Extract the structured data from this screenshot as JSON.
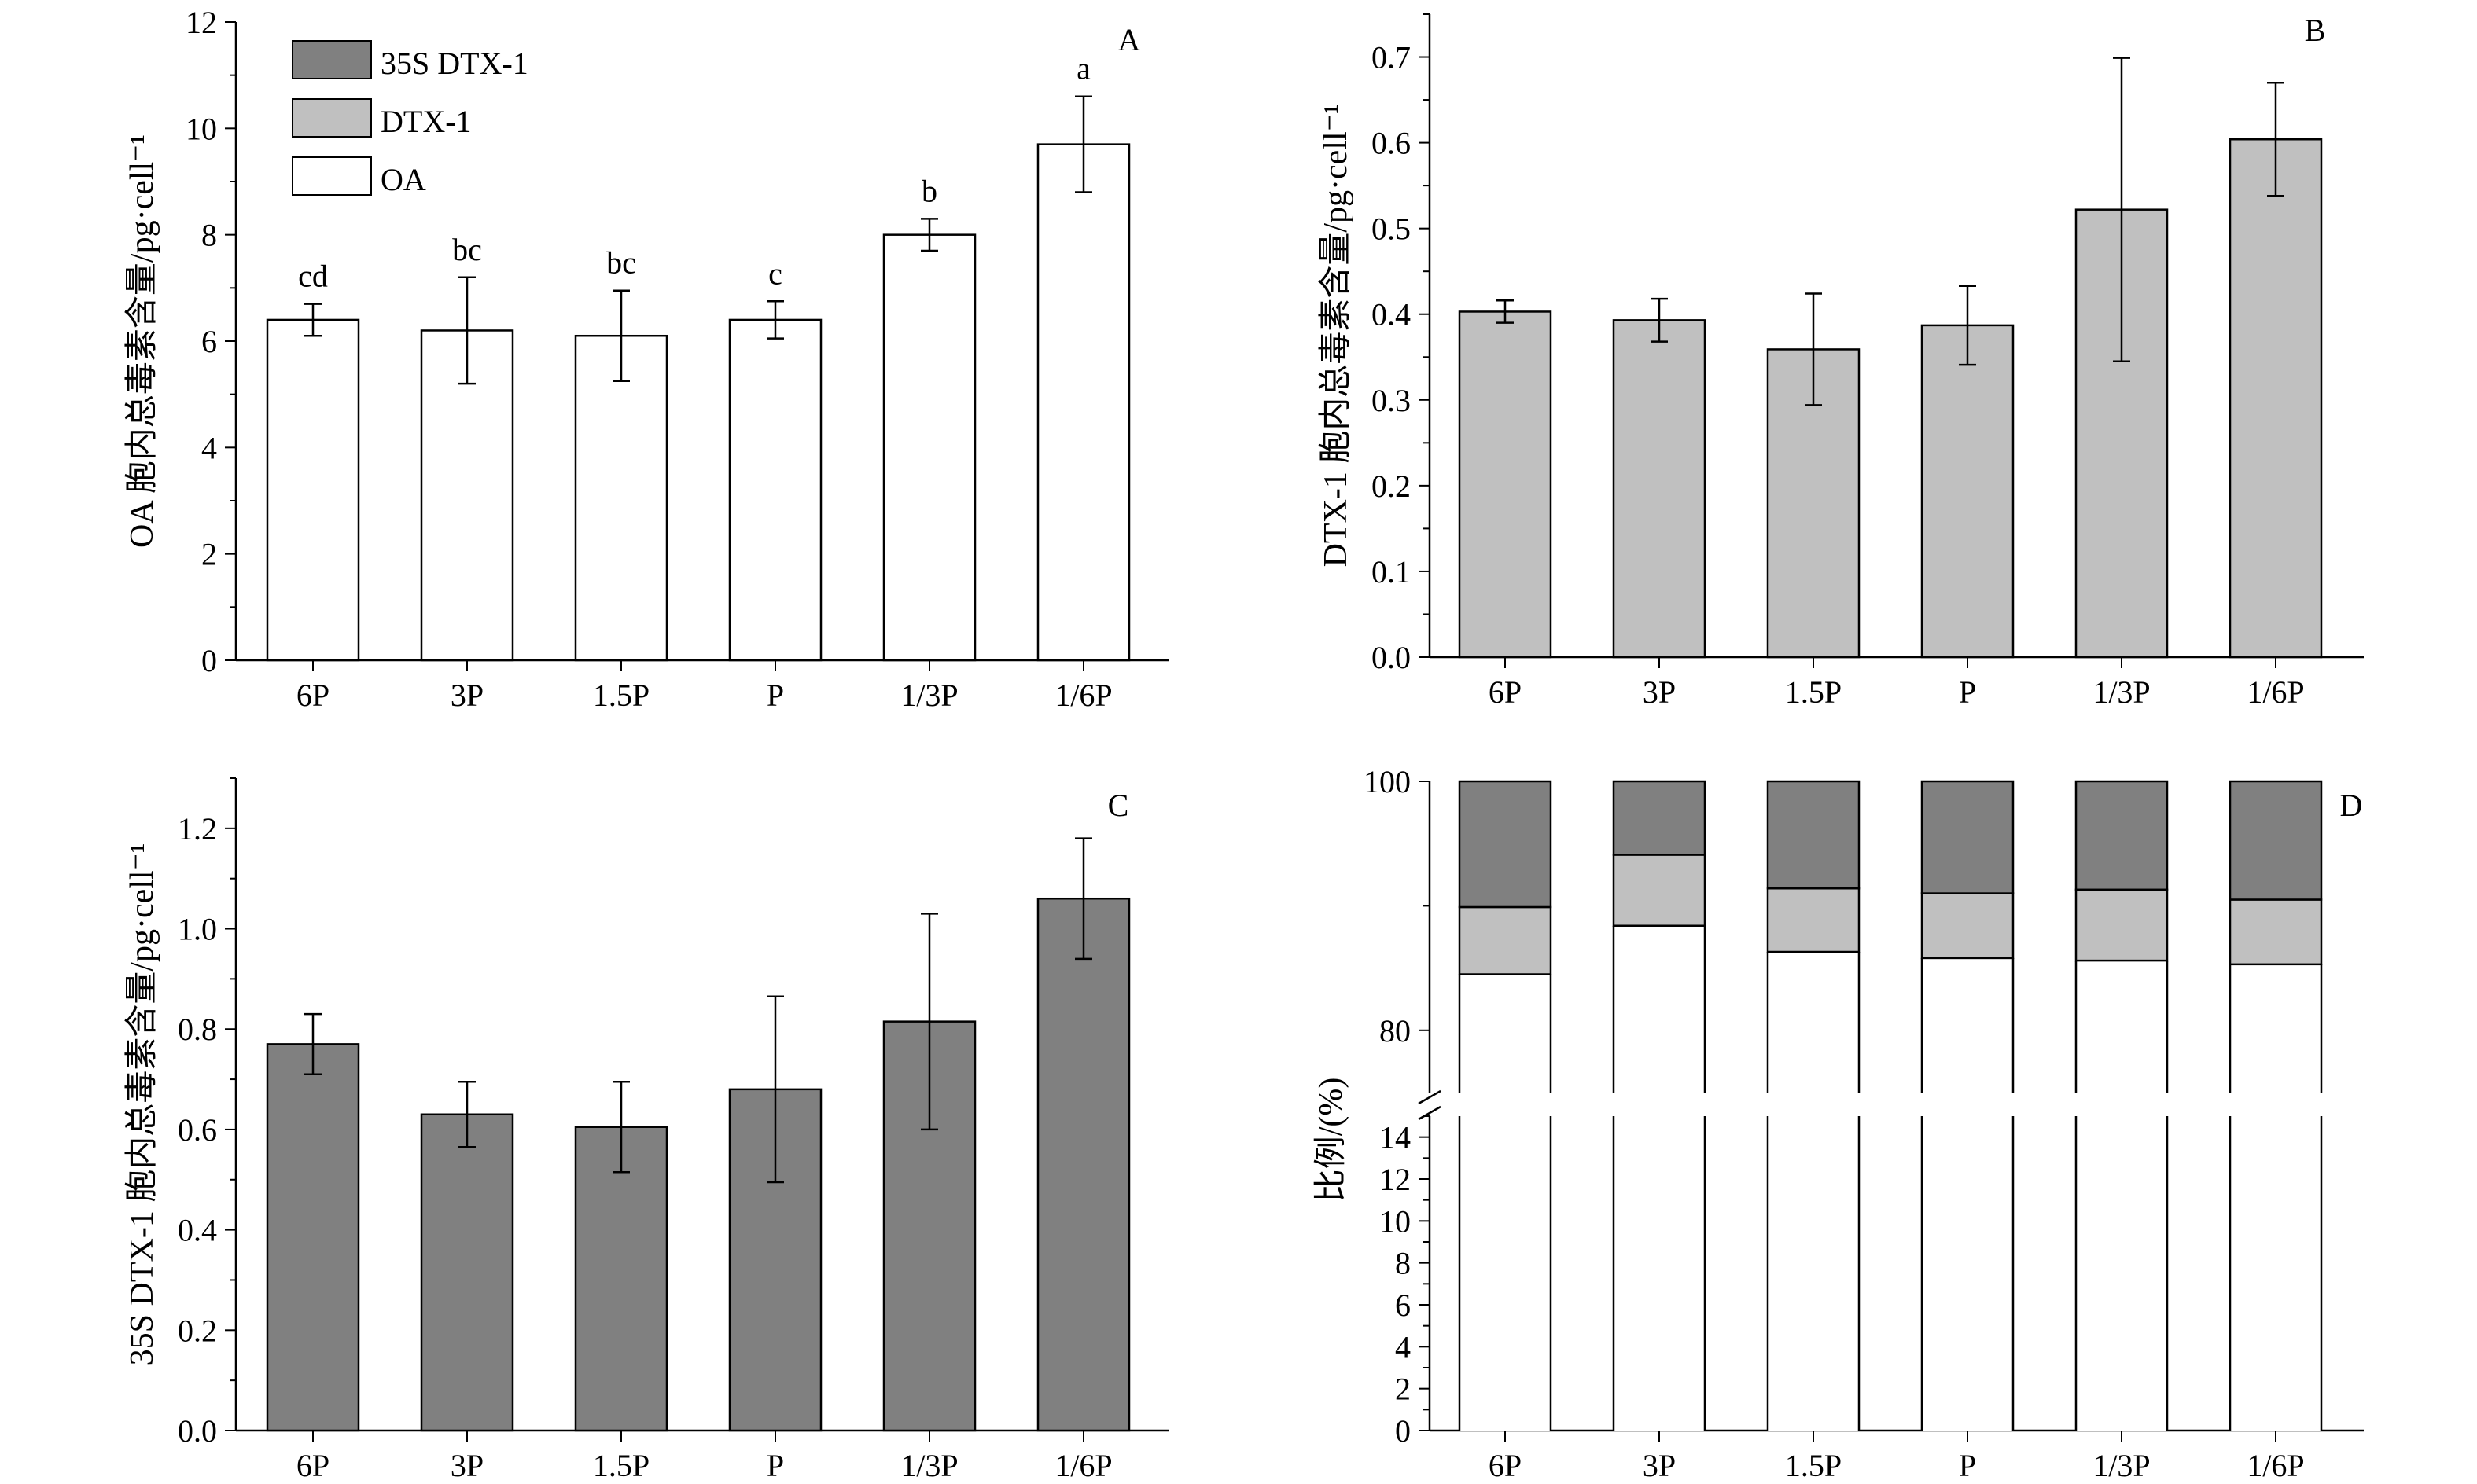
{
  "legend": [
    {
      "label": "35S DTX-1",
      "color": "#808080"
    },
    {
      "label": "DTX-1",
      "color": "#c0c0c0"
    },
    {
      "label": "OA",
      "color": "#ffffff"
    }
  ],
  "chart_data": [
    {
      "panel": "A",
      "type": "bar",
      "categories": [
        "6P",
        "3P",
        "1.5P",
        "P",
        "1/3P",
        "1/6P"
      ],
      "values": [
        6.4,
        6.2,
        6.1,
        6.4,
        8.0,
        9.7
      ],
      "errors": [
        0.3,
        1.0,
        0.85,
        0.35,
        0.3,
        0.9
      ],
      "letters": [
        "cd",
        "bc",
        "bc",
        "c",
        "b",
        "a"
      ],
      "ylabel": "OA 胞内总毒素含量/pg·cell⁻¹",
      "ylim": [
        0,
        12
      ],
      "yticks": [
        0,
        2,
        4,
        6,
        8,
        10,
        12
      ],
      "tick_decimals": 0,
      "color": "#ffffff"
    },
    {
      "panel": "B",
      "type": "bar",
      "categories": [
        "6P",
        "3P",
        "1.5P",
        "P",
        "1/3P",
        "1/6P"
      ],
      "values": [
        0.403,
        0.393,
        0.359,
        0.387,
        0.522,
        0.604
      ],
      "errors": [
        0.013,
        0.025,
        0.065,
        0.046,
        0.177,
        0.066
      ],
      "ylabel": "DTX-1 胞内总毒素含量/pg·cell⁻¹",
      "ylim": [
        0,
        0.75
      ],
      "yticks": [
        0,
        0.1,
        0.2,
        0.3,
        0.4,
        0.5,
        0.6,
        0.7
      ],
      "tick_decimals": 1,
      "color": "#c0c0c0"
    },
    {
      "panel": "C",
      "type": "bar",
      "categories": [
        "6P",
        "3P",
        "1.5P",
        "P",
        "1/3P",
        "1/6P"
      ],
      "values": [
        0.77,
        0.63,
        0.605,
        0.68,
        0.815,
        1.06
      ],
      "errors": [
        0.06,
        0.065,
        0.09,
        0.185,
        0.215,
        0.12
      ],
      "ylabel": "35S DTX-1 胞内总毒素含量/pg·cell⁻¹",
      "ylim": [
        0,
        1.3
      ],
      "yticks": [
        0,
        0.2,
        0.4,
        0.6,
        0.8,
        1.0,
        1.2
      ],
      "tick_decimals": 1,
      "color": "#808080"
    },
    {
      "panel": "D",
      "type": "bar",
      "stacked": true,
      "categories": [
        "6P",
        "3P",
        "1.5P",
        "P",
        "1/3P",
        "1/6P"
      ],
      "series": [
        {
          "name": "OA",
          "values": [
            84.5,
            88.4,
            86.3,
            85.8,
            85.6,
            85.3
          ],
          "color": "#ffffff"
        },
        {
          "name": "DTX-1",
          "values": [
            5.4,
            5.7,
            5.1,
            5.2,
            5.7,
            5.2
          ],
          "color": "#c0c0c0"
        },
        {
          "name": "35S DTX-1",
          "values": [
            10.1,
            5.9,
            8.6,
            9.0,
            8.7,
            9.5
          ],
          "color": "#808080"
        }
      ],
      "ylabel": "比例/(%)",
      "ylim_lower": [
        0,
        15
      ],
      "ylim_upper": [
        75,
        100
      ],
      "yticks_lower": [
        0,
        2,
        4,
        6,
        8,
        10,
        12,
        14
      ],
      "yticks_upper": [
        80,
        100
      ],
      "tick_decimals": 0
    }
  ]
}
